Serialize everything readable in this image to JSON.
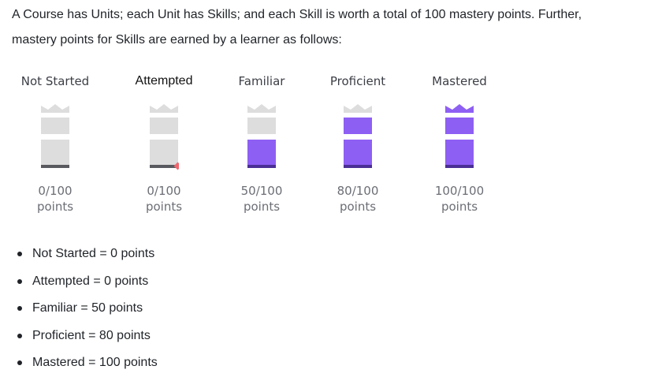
{
  "intro": {
    "line1": "A Course has Units; each Unit has Skills; and each Skill is worth a total of 100 mastery points. Further,",
    "line2": "mastery points for Skills are earned by a learner as follows:"
  },
  "colors": {
    "empty": "#dddddd",
    "base": "#595a5f",
    "filled": "#8e5ff3",
    "filled_base": "#4b2f96",
    "attempt_marker": "#f0666e"
  },
  "levels": [
    {
      "title": "Not Started",
      "points_line1": "0/100",
      "points_line2": "points",
      "fill_fraction": 0,
      "marker": false,
      "icon": "mastery-tower-empty"
    },
    {
      "title": "Attempted",
      "points_line1": "0/100",
      "points_line2": "points",
      "fill_fraction": 0,
      "marker": true,
      "icon": "mastery-tower-attempted"
    },
    {
      "title": "Familiar",
      "points_line1": "50/100",
      "points_line2": "points",
      "fill_fraction": 0.5,
      "marker": false,
      "icon": "mastery-tower-familiar"
    },
    {
      "title": "Proficient",
      "points_line1": "80/100",
      "points_line2": "points",
      "fill_fraction": 0.8,
      "marker": false,
      "icon": "mastery-tower-proficient"
    },
    {
      "title": "Mastered",
      "points_line1": "100/100",
      "points_line2": "points",
      "fill_fraction": 1,
      "marker": false,
      "icon": "mastery-tower-mastered"
    }
  ],
  "list": [
    "Not Started = 0 points",
    "Attempted = 0 points",
    "Familiar = 50 points",
    "Proficient = 80 points",
    "Mastered = 100 points"
  ]
}
